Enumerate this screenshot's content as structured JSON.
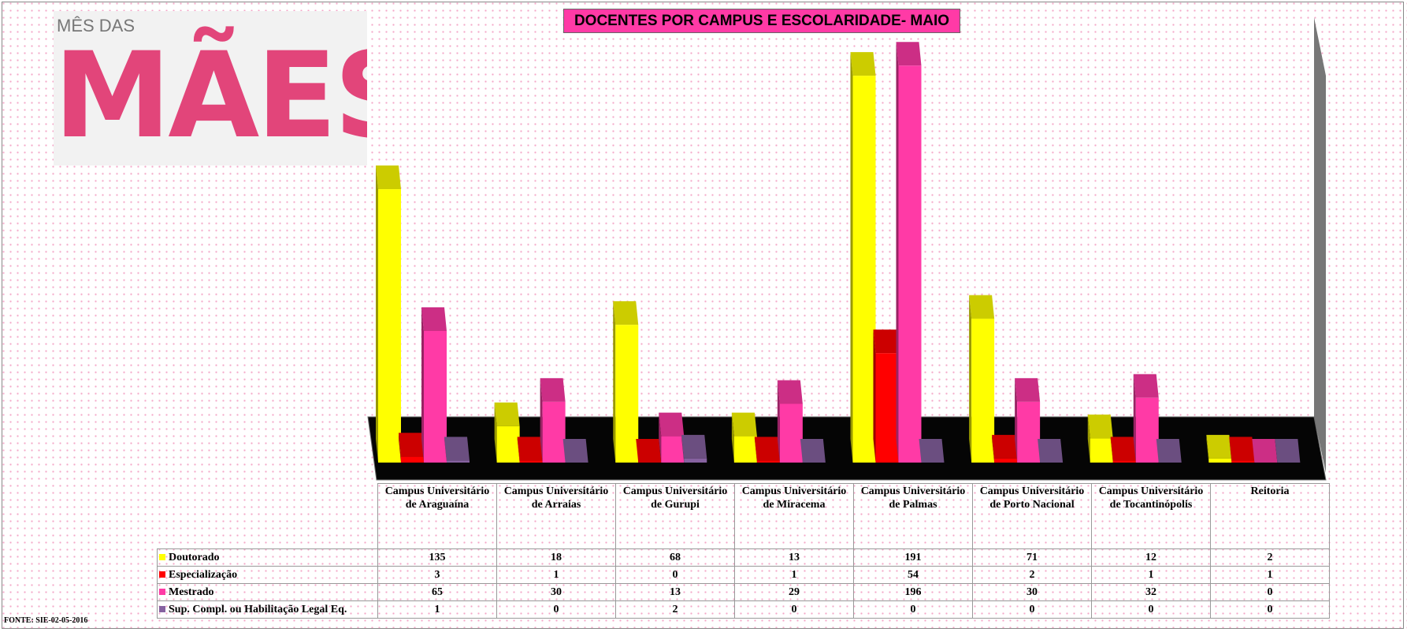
{
  "banner": {
    "small": "MÊS DAS",
    "big": "MÃES"
  },
  "chart_data": {
    "type": "bar",
    "title": "DOCENTES POR CAMPUS E ESCOLARIDADE- MAIO",
    "source": "FONTE: SIE-02-05-2016",
    "categories": [
      "Campus Universitário de Araguaína",
      "Campus Universitário de Arraias",
      "Campus Universitário de Gurupi",
      "Campus Universitário de Miracema",
      "Campus Universitário de Palmas",
      "Campus Universitário de Porto Nacional",
      "Campus Universitário de Tocantinópolis",
      "Reitoria"
    ],
    "series": [
      {
        "name": "Doutorado",
        "color": "#ffff00",
        "values": [
          135,
          18,
          68,
          13,
          191,
          71,
          12,
          2
        ]
      },
      {
        "name": "Especialização",
        "color": "#ff0000",
        "values": [
          3,
          1,
          0,
          1,
          54,
          2,
          1,
          1
        ]
      },
      {
        "name": "Mestrado",
        "color": "#ff3aa6",
        "values": [
          65,
          30,
          13,
          29,
          196,
          30,
          32,
          0
        ]
      },
      {
        "name": "Sup. Compl. ou Habilitação Legal Eq.",
        "color": "#8662a0",
        "values": [
          1,
          0,
          2,
          0,
          0,
          0,
          0,
          0
        ]
      }
    ],
    "ylim": [
      0,
      200
    ]
  }
}
